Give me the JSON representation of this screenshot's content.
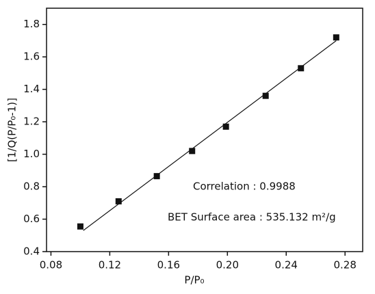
{
  "chart_data": {
    "type": "scatter",
    "x_label": "P/P₀",
    "y_label": "[1/Q(P/P₀-1)]",
    "x": [
      0.1,
      0.126,
      0.152,
      0.176,
      0.199,
      0.226,
      0.25,
      0.274
    ],
    "values": [
      0.555,
      0.71,
      0.865,
      1.02,
      1.17,
      1.36,
      1.53,
      1.72
    ],
    "color": "#111111",
    "fit_line": {
      "x": [
        0.102,
        0.274
      ],
      "values": [
        0.53,
        1.7
      ],
      "color": "#111111"
    },
    "xlim": [
      0.077,
      0.292
    ],
    "ylim": [
      0.4,
      1.9
    ],
    "xticks": [
      0.08,
      0.12,
      0.16,
      {
        "value": 0.2,
        "label": "0.20"
      },
      0.24,
      0.28
    ],
    "yticks": [
      0.4,
      0.6,
      0.8,
      {
        "value": 1,
        "label": "1.0"
      },
      1.2,
      1.4,
      1.6,
      1.8
    ],
    "annotations": [
      "Correlation : 0.9988",
      "BET Surface area : 535.132 m²/g"
    ]
  }
}
